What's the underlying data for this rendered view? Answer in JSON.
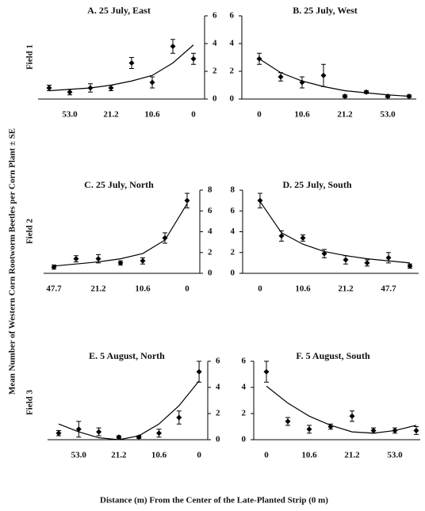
{
  "figure": {
    "ylabel": "Mean Number of Western Corn Rootworm Beetles per Corn Plant ± SE",
    "xlabel": "Distance (m) From the Center of the Late-Planted Strip (0 m)",
    "fields": [
      "Field 1",
      "Field 2",
      "Field 3"
    ]
  },
  "chart_data": [
    {
      "type": "scatter",
      "title": "A. 25 July, East",
      "y_axis_side": "right",
      "color": "#000000",
      "categories": [
        null,
        "53.0",
        null,
        "21.2",
        null,
        "10.6",
        null,
        "0"
      ],
      "values": [
        0.8,
        0.5,
        0.8,
        0.8,
        2.6,
        1.2,
        3.8,
        2.9
      ],
      "errors": [
        0.2,
        0.2,
        0.3,
        0.2,
        0.4,
        0.4,
        0.5,
        0.4
      ],
      "fit": [
        0.6,
        0.7,
        0.8,
        1.0,
        1.3,
        1.7,
        2.6,
        3.9
      ],
      "ylim": [
        0,
        6
      ],
      "yticks": [
        0,
        2,
        4,
        6
      ]
    },
    {
      "type": "scatter",
      "title": "B. 25 July, West",
      "y_axis_side": "left",
      "color": "#000000",
      "categories": [
        "0",
        null,
        "10.6",
        null,
        "21.2",
        null,
        "53.0",
        null
      ],
      "values": [
        2.9,
        1.6,
        1.2,
        1.7,
        0.2,
        0.5,
        0.2,
        0.2
      ],
      "errors": [
        0.4,
        0.3,
        0.4,
        0.8,
        0.1,
        0.1,
        0.1,
        0.1
      ],
      "fit": [
        2.9,
        1.9,
        1.3,
        0.9,
        0.6,
        0.45,
        0.3,
        0.2
      ],
      "ylim": [
        0,
        6
      ],
      "yticks": [
        0,
        2,
        4,
        6
      ]
    },
    {
      "type": "scatter",
      "title": "C. 25 July, North",
      "y_axis_side": "right",
      "color": "#000000",
      "categories": [
        "47.7",
        null,
        "21.2",
        null,
        "10.6",
        null,
        "0"
      ],
      "values": [
        0.6,
        1.4,
        1.4,
        1.0,
        1.2,
        3.4,
        7.0
      ],
      "errors": [
        0.2,
        0.3,
        0.4,
        0.2,
        0.3,
        0.5,
        0.7
      ],
      "fit": [
        0.7,
        0.9,
        1.1,
        1.4,
        1.9,
        3.2,
        6.7
      ],
      "ylim": [
        0,
        8
      ],
      "yticks": [
        0,
        2,
        4,
        6,
        8
      ]
    },
    {
      "type": "scatter",
      "title": "D. 25 July, South",
      "y_axis_side": "left",
      "color": "#000000",
      "categories": [
        "0",
        null,
        "10.6",
        null,
        "21.2",
        null,
        "47.7",
        null
      ],
      "values": [
        7.0,
        3.6,
        3.4,
        1.9,
        1.3,
        1.0,
        1.5,
        0.7
      ],
      "errors": [
        0.7,
        0.5,
        0.3,
        0.4,
        0.4,
        0.3,
        0.5,
        0.2
      ],
      "fit": [
        6.9,
        3.9,
        2.8,
        2.1,
        1.7,
        1.4,
        1.2,
        1.0
      ],
      "ylim": [
        0,
        8
      ],
      "yticks": [
        0,
        2,
        4,
        6,
        8
      ]
    },
    {
      "type": "scatter",
      "title": "E. 5 August, North",
      "y_axis_side": "right",
      "color": "#000000",
      "categories": [
        null,
        "53.0",
        null,
        "21.2",
        null,
        "10.6",
        null,
        "0"
      ],
      "values": [
        0.5,
        0.8,
        0.6,
        0.2,
        0.2,
        0.5,
        1.7,
        5.2
      ],
      "errors": [
        0.2,
        0.6,
        0.3,
        0.1,
        0.1,
        0.3,
        0.5,
        0.8
      ],
      "fit": [
        1.2,
        0.6,
        0.15,
        0,
        0.3,
        1.2,
        2.6,
        4.5
      ],
      "ylim": [
        0,
        6
      ],
      "yticks": [
        0,
        2,
        4,
        6
      ]
    },
    {
      "type": "scatter",
      "title": "F. 5 August, South",
      "y_axis_side": "left",
      "color": "#000000",
      "categories": [
        "0",
        null,
        "10.6",
        null,
        "21.2",
        null,
        "53.0",
        null
      ],
      "values": [
        5.2,
        1.4,
        0.8,
        1.0,
        1.8,
        0.7,
        0.7,
        0.7
      ],
      "errors": [
        0.8,
        0.3,
        0.3,
        0.2,
        0.4,
        0.2,
        0.2,
        0.3
      ],
      "fit": [
        4.1,
        2.8,
        1.8,
        1.1,
        0.6,
        0.5,
        0.7,
        1.1
      ],
      "ylim": [
        0,
        6
      ],
      "yticks": [
        0,
        2,
        4,
        6
      ]
    }
  ]
}
